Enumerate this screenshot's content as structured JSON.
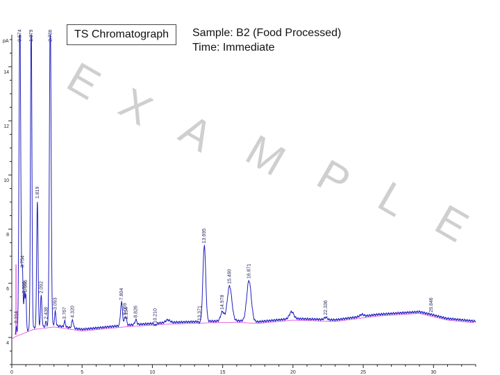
{
  "header": {
    "title": "TS Chromatograph",
    "sample": "Sample: B2 (Food Processed)",
    "time": "Time: Immediate"
  },
  "watermark": [
    "E",
    "X",
    "A",
    "M",
    "P",
    "L",
    "E"
  ],
  "chart_data": {
    "type": "line",
    "ylabel": "pA",
    "xlim": [
      0,
      33
    ],
    "ylim": [
      3,
      16
    ],
    "x_ticks": [
      0,
      5,
      10,
      15,
      20,
      25,
      30
    ],
    "y_ticks": [
      4,
      6,
      8,
      10,
      12,
      14
    ],
    "y_tick_labels": [
      "4",
      "6",
      "8",
      "10",
      "12",
      "14"
    ],
    "grid": false,
    "colors": {
      "signal": "#1f1fbf",
      "baseline": "#e040e0"
    },
    "peaks": [
      {
        "rt": 0.314,
        "label": "0.314",
        "height": 4.45,
        "width": 0.03
      },
      {
        "rt": 0.574,
        "label": "0.574",
        "height": 16.2,
        "width": 0.06
      },
      {
        "rt": 0.754,
        "label": "0.754",
        "height": 6.5,
        "width": 0.05
      },
      {
        "rt": 0.896,
        "label": "0.896",
        "height": 5.55,
        "width": 0.04
      },
      {
        "rt": 0.996,
        "label": "0.996",
        "height": 5.6,
        "width": 0.04
      },
      {
        "rt": 1.379,
        "label": "1.379",
        "height": 16.2,
        "width": 0.05
      },
      {
        "rt": 1.819,
        "label": "1.819",
        "height": 9.05,
        "width": 0.05
      },
      {
        "rt": 2.092,
        "label": "2.092",
        "height": 5.55,
        "width": 0.05
      },
      {
        "rt": 2.438,
        "label": "2.438",
        "height": 4.6,
        "width": 0.04
      },
      {
        "rt": 2.736,
        "label": "2.736",
        "height": 16.2,
        "width": 0.06
      },
      {
        "rt": 3.093,
        "label": "3.093",
        "height": 4.95,
        "width": 0.05
      },
      {
        "rt": 3.767,
        "label": "3.767",
        "height": 4.6,
        "width": 0.05
      },
      {
        "rt": 4.32,
        "label": "4.320",
        "height": 4.65,
        "width": 0.06
      },
      {
        "rt": 7.804,
        "label": "7.804",
        "height": 5.3,
        "width": 0.07
      },
      {
        "rt": 8.059,
        "label": "8.059",
        "height": 4.75,
        "width": 0.06
      },
      {
        "rt": 8.154,
        "label": "8.154",
        "height": 4.6,
        "width": 0.05
      },
      {
        "rt": 8.826,
        "label": "8.826",
        "height": 4.65,
        "width": 0.07
      },
      {
        "rt": 10.21,
        "label": "10.210",
        "height": 4.45,
        "width": 0.08
      },
      {
        "rt": 13.371,
        "label": "13.371",
        "height": 4.55,
        "width": 0.08
      },
      {
        "rt": 13.695,
        "label": "13.695",
        "height": 7.4,
        "width": 0.1
      },
      {
        "rt": 14.978,
        "label": "14.978",
        "height": 4.95,
        "width": 0.12
      },
      {
        "rt": 15.49,
        "label": "15.490",
        "height": 5.9,
        "width": 0.16
      },
      {
        "rt": 16.871,
        "label": "16.871",
        "height": 6.1,
        "width": 0.16
      },
      {
        "rt": 22.336,
        "label": "22.336",
        "height": 4.75,
        "width": 0.1
      },
      {
        "rt": 29.846,
        "label": "29.846",
        "height": 4.85,
        "width": 0.14
      }
    ],
    "unlabeled_peaks": [
      {
        "rt": 11.1,
        "height": 4.65,
        "width": 0.15
      },
      {
        "rt": 19.9,
        "height": 4.95,
        "width": 0.15
      },
      {
        "rt": 24.9,
        "height": 4.85,
        "width": 0.14
      },
      {
        "rt": 30.8,
        "height": 4.72,
        "width": 0.16
      }
    ],
    "baseline_points": [
      [
        0,
        4.0
      ],
      [
        0.3,
        4.1
      ],
      [
        1.5,
        4.35
      ],
      [
        3.0,
        4.45
      ],
      [
        5.0,
        4.3
      ],
      [
        8.0,
        4.45
      ],
      [
        11.0,
        4.55
      ],
      [
        14.0,
        4.6
      ],
      [
        16.0,
        4.62
      ],
      [
        17.5,
        4.58
      ],
      [
        20.0,
        4.7
      ],
      [
        23.0,
        4.65
      ],
      [
        26.0,
        4.85
      ],
      [
        29.0,
        4.95
      ],
      [
        31.0,
        4.7
      ],
      [
        33.0,
        4.6
      ]
    ]
  }
}
